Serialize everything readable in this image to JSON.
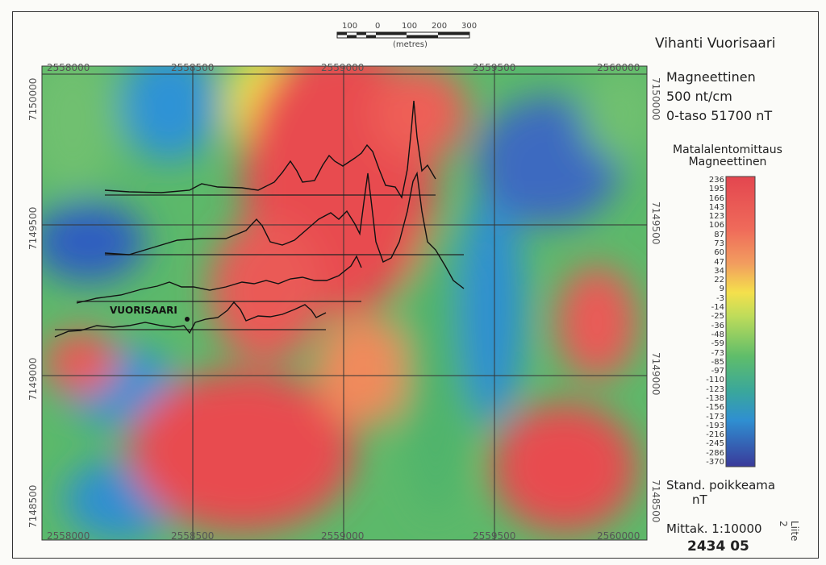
{
  "map": {
    "title": "Vihanti Vuorisaari",
    "place_label": "VUORISAARI",
    "x_ticks": [
      "2558000",
      "2558500",
      "2559000",
      "2559500",
      "2560000"
    ],
    "y_ticks": [
      "7150000",
      "7149500",
      "7149000",
      "7148500"
    ]
  },
  "scale_bar": {
    "labels": [
      "100",
      "0",
      "100",
      "200",
      "300"
    ],
    "unit": "(metres)"
  },
  "info": {
    "line1": "Magneettinen",
    "line2": "500 nt/cm",
    "line3": "0-taso 51700 nT"
  },
  "legend": {
    "title_line1": "Matalalentomittaus",
    "title_line2": "Magneettinen",
    "values": [
      "236",
      "195",
      "166",
      "143",
      "123",
      "106",
      "87",
      "73",
      "60",
      "47",
      "34",
      "22",
      "9",
      "-3",
      "-14",
      "-25",
      "-36",
      "-48",
      "-59",
      "-73",
      "-85",
      "-97",
      "-110",
      "-123",
      "-138",
      "-156",
      "-173",
      "-193",
      "-216",
      "-245",
      "-286",
      "-370"
    ]
  },
  "footer": {
    "std_line1": "Stand. poikkeama",
    "std_line2": "nT",
    "scale": "Mittak. 1:10000",
    "code": "2434 05",
    "side": "Liite 2"
  }
}
